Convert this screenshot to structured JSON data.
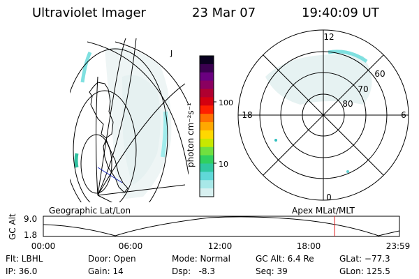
{
  "header": {
    "title": "Ultraviolet Imager",
    "date": "23 Mar 07",
    "time": "19:40:09 UT"
  },
  "colorbar": {
    "label": "photon cm⁻²s⁻¹",
    "ticks": [
      "100",
      "10"
    ],
    "colors": [
      "#0a0020",
      "#3a0050",
      "#6a0080",
      "#8a0060",
      "#b00030",
      "#d40010",
      "#ff2000",
      "#ff7000",
      "#ffa800",
      "#ffd800",
      "#c8e800",
      "#70e040",
      "#30d060",
      "#30c8a0",
      "#60d8d8",
      "#a8e8e8",
      "#d8f0f0"
    ]
  },
  "left_panel": {
    "label": "Geographic Lat/Lon",
    "marker": "J"
  },
  "right_panel": {
    "label": "Apex MLat/MLT",
    "mlt_labels": {
      "top": "12",
      "left": "18",
      "right": "6",
      "bottom": "0"
    },
    "lat_labels": [
      "60",
      "70",
      "80"
    ]
  },
  "altitude_plot": {
    "ylabel": "GC Alt",
    "yticks": [
      "9.0",
      "1.8"
    ],
    "xticks": [
      "00:00",
      "06:00",
      "12:00",
      "18:00",
      "23:59"
    ],
    "current_time_fraction": 0.818
  },
  "info": {
    "filter": "Flt: LBHL",
    "ip": "IP: 36.0",
    "door": "Door: Open",
    "gain": "Gain: 14",
    "mode": "Mode: Normal",
    "dsp": "Dsp:   -8.3",
    "gc_alt": "GC Alt: 6.4 Re",
    "seq": "Seq: 39",
    "glat": "GLat: −77.3",
    "glon": "GLon: 125.5"
  }
}
